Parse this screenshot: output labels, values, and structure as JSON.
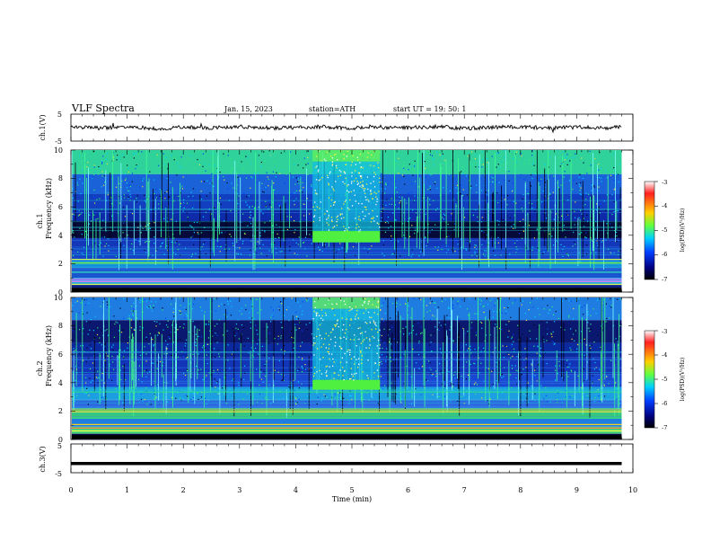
{
  "header": {
    "title": "VLF  Spectra",
    "date": "Jan. 15, 2023",
    "station": "station=ATH",
    "start": "start  UT  =    19: 50: 1"
  },
  "panels": {
    "ch1v": {
      "ylabel": "ch.1(V)",
      "ticks": [
        "5",
        "-5"
      ]
    },
    "ch1": {
      "ylabel_top": "ch.1",
      "ylabel": "Frequency (kHz)",
      "ticks": [
        "10",
        "8",
        "6",
        "4",
        "2",
        "0"
      ]
    },
    "ch2": {
      "ylabel_top": "ch.2",
      "ylabel": "Frequency (kHz)",
      "ticks": [
        "10",
        "8",
        "6",
        "4",
        "2",
        "0"
      ]
    },
    "ch3v": {
      "ylabel": "ch.3(V)",
      "ticks": [
        "5",
        "-5"
      ]
    }
  },
  "xaxis": {
    "label": "Time  (min)",
    "ticks": [
      "0",
      "1",
      "2",
      "3",
      "4",
      "5",
      "6",
      "7",
      "8",
      "9",
      "10"
    ]
  },
  "colorbar": {
    "label": "log(PSD)(V²/Hz)",
    "ticks": [
      "-3",
      "-4",
      "-5",
      "-6",
      "-7"
    ],
    "colors": [
      "#ffffff",
      "#ff2020",
      "#ffd000",
      "#60ff40",
      "#00d0ff",
      "#0040ff",
      "#000080",
      "#000000"
    ]
  },
  "chart_data": [
    {
      "type": "line",
      "name_ref": "ch.1(V)",
      "xlim": [
        0,
        10
      ],
      "ylim": [
        -5,
        5
      ],
      "x": [
        0.0,
        0.5,
        1.0,
        1.5,
        2.0,
        2.5,
        3.0,
        3.5,
        4.0,
        4.5,
        5.0,
        5.5,
        6.0,
        6.5,
        7.0,
        7.5,
        8.0,
        8.5,
        9.0,
        9.5,
        9.8
      ],
      "y": [
        0.3,
        -0.2,
        0.5,
        -0.4,
        0.2,
        -0.1,
        0.4,
        -0.3,
        0.1,
        0.3,
        -0.2,
        0.2,
        -0.1,
        0.4,
        -0.3,
        0.1,
        0.3,
        -0.2,
        0.2,
        -0.1,
        0.2
      ]
    },
    {
      "type": "heatmap",
      "name_ref": "ch.1",
      "xlim": [
        0,
        10
      ],
      "ylim": [
        0,
        10
      ],
      "x_end": 9.8,
      "event": {
        "x_start": 4.3,
        "x_end": 5.5,
        "band_khz": [
          3.5,
          4.3
        ]
      },
      "quiet_band_khz": [
        3.8,
        5.0
      ]
    },
    {
      "type": "heatmap",
      "name_ref": "ch.2",
      "xlim": [
        0,
        10
      ],
      "ylim": [
        0,
        10
      ],
      "x_end": 9.8,
      "event": {
        "x_start": 4.3,
        "x_end": 5.5,
        "band_khz": [
          3.5,
          4.2
        ]
      }
    },
    {
      "type": "line",
      "name_ref": "ch.3(V)",
      "xlim": [
        0,
        10
      ],
      "ylim": [
        -5,
        5
      ],
      "x": [
        0,
        9.8
      ],
      "y": [
        -1.8,
        -1.8
      ]
    }
  ]
}
